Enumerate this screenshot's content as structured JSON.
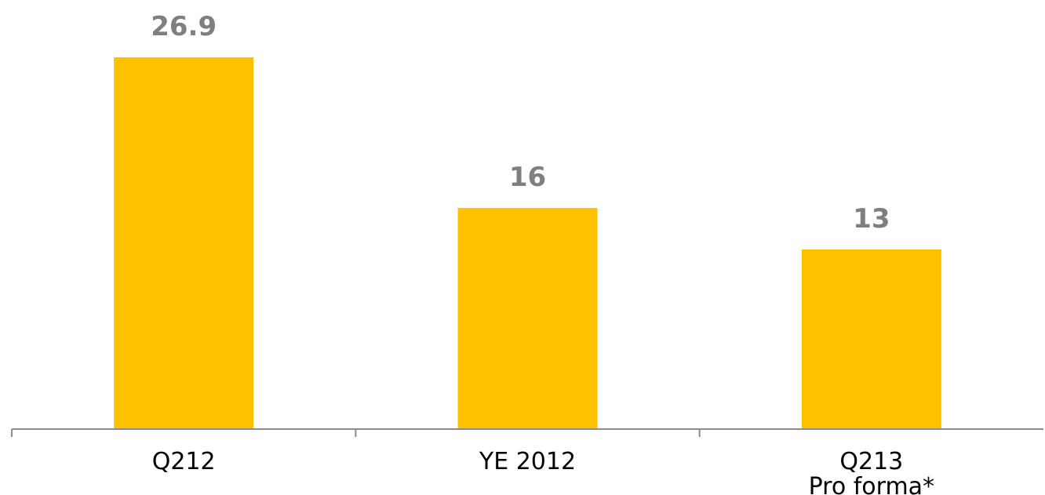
{
  "chart_data": {
    "type": "bar",
    "categories": [
      [
        "Q212"
      ],
      [
        "YE 2012"
      ],
      [
        "Q213",
        "Pro forma*"
      ]
    ],
    "values": [
      26.9,
      16,
      13
    ],
    "value_labels": [
      "26.9",
      "16",
      "13"
    ],
    "title": "",
    "xlabel": "",
    "ylabel": "",
    "ylim": [
      0,
      30
    ],
    "grid": false,
    "legend": "none",
    "bar_color": "#FFC000",
    "value_label_color": "#7F7F7F"
  }
}
